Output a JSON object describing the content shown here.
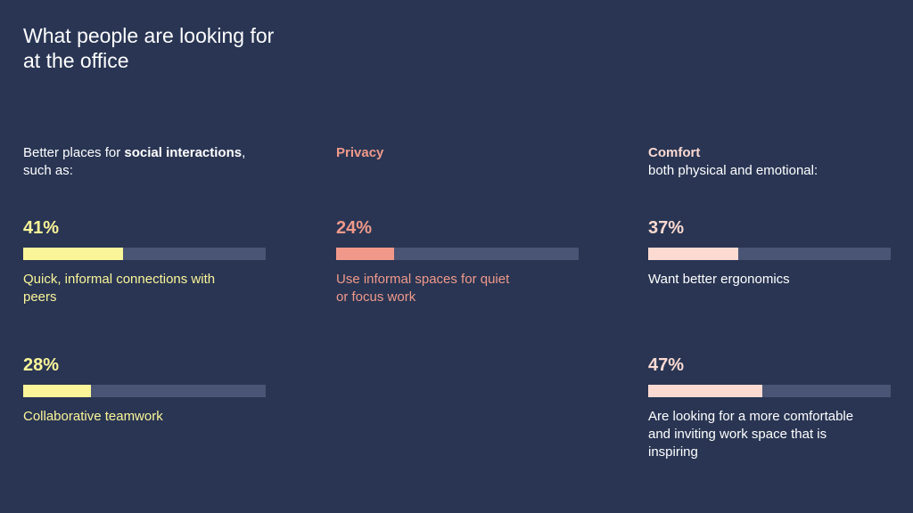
{
  "title": {
    "line1": "What people are looking for",
    "line2": "at the office"
  },
  "colors": {
    "background": "#293553",
    "bar_track": "#4a5575",
    "social": "#fbf599",
    "privacy": "#f0998a",
    "comfort": "#fcdad2"
  },
  "columns": [
    {
      "heading_pre": "Better places for ",
      "heading_bold": "social interactions",
      "heading_post": ", such as:"
    },
    {
      "heading_bold": "Privacy"
    },
    {
      "heading_bold": "Comfort",
      "heading_sub": "both physical and emotional:"
    }
  ],
  "chart_data": {
    "type": "bar",
    "groups": [
      {
        "name": "Better places for social interactions, such as:",
        "items": [
          {
            "label": "41%",
            "value": 41,
            "description": "Quick, informal connections with peers"
          },
          {
            "label": "28%",
            "value": 28,
            "description": "Collaborative teamwork"
          }
        ]
      },
      {
        "name": "Privacy",
        "items": [
          {
            "label": "24%",
            "value": 24,
            "description": "Use informal spaces for quiet or focus work"
          }
        ]
      },
      {
        "name": "Comfort both physical and emotional:",
        "items": [
          {
            "label": "37%",
            "value": 37,
            "description": "Want better ergonomics"
          },
          {
            "label": "47%",
            "value": 47,
            "description": "Are looking for a more comfortable and inviting work space that is inspiring"
          }
        ]
      }
    ],
    "ylim": [
      0,
      100
    ]
  }
}
